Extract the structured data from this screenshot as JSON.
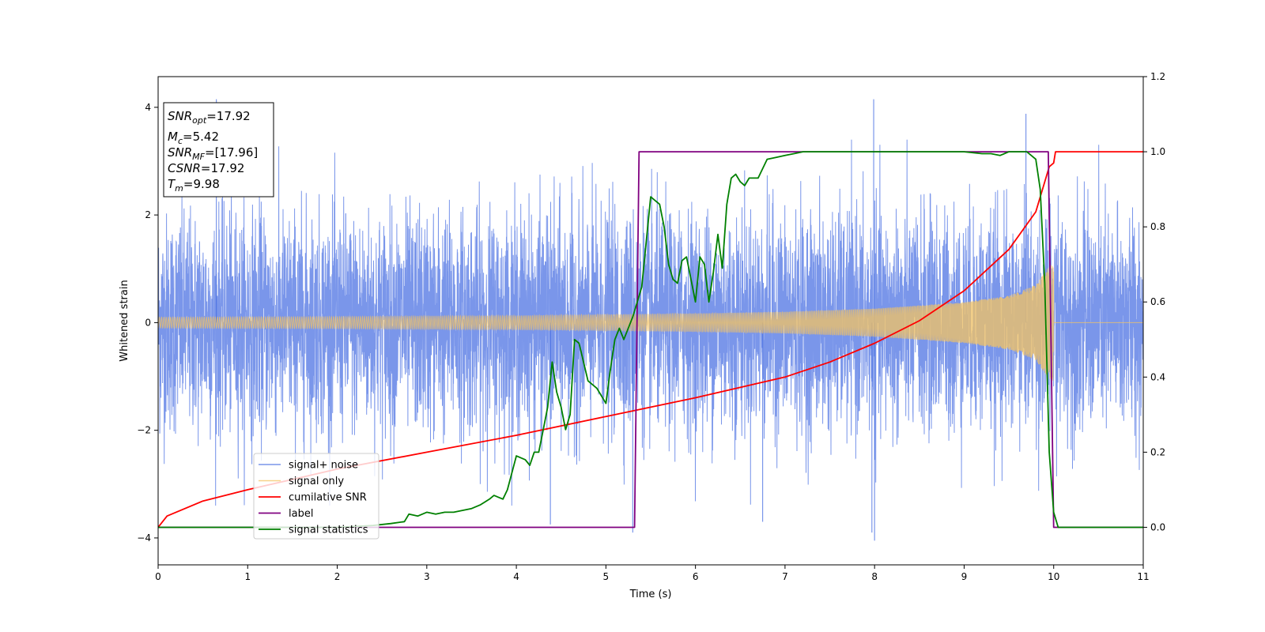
{
  "chart_data": {
    "type": "line",
    "xlabel": "Time (s)",
    "ylabel_left": "Whitened strain",
    "xlim": [
      0,
      11
    ],
    "ylim_left": [
      -4.5,
      4.57
    ],
    "ylim_right": [
      -0.1,
      1.2
    ],
    "x_ticks": [
      0,
      1,
      2,
      3,
      4,
      5,
      6,
      7,
      8,
      9,
      10,
      11
    ],
    "y_ticks_left": [
      -4,
      -2,
      0,
      2,
      4
    ],
    "y_ticks_right": [
      0.0,
      0.2,
      0.4,
      0.6,
      0.8,
      1.0,
      1.2
    ],
    "grid": false,
    "legend_position": "lower-left",
    "annotation": {
      "snr_opt": {
        "symbol": "SNR",
        "sub": "opt",
        "value": "=17.92"
      },
      "mc": {
        "symbol": "M",
        "sub": "c",
        "value": "=5.42"
      },
      "snr_mf": {
        "symbol": "SNR",
        "sub": "MF",
        "value": "=[17.96]"
      },
      "csnr": {
        "symbol": "CSNR",
        "value": "=17.92"
      },
      "tm": {
        "symbol": "T",
        "sub": "m",
        "value": "=9.98"
      }
    },
    "series": [
      {
        "name": "signal+ noise",
        "axis": "left",
        "color": "#4169e1",
        "kind": "noise",
        "noise_sigma": 1.0,
        "noise_extremes": [
          [
            0.65,
            4.15
          ],
          [
            7.99,
            4.15
          ],
          [
            9.69,
            3.88
          ],
          [
            7.97,
            -3.9
          ],
          [
            8.0,
            -4.05
          ],
          [
            5.3,
            -3.9
          ],
          [
            6.75,
            -3.7
          ],
          [
            4.38,
            -3.75
          ]
        ],
        "x_range": [
          0,
          11
        ]
      },
      {
        "name": "signal only",
        "axis": "left",
        "color": "#f4c362",
        "kind": "chirp",
        "envelope": {
          "t": [
            0,
            2,
            4,
            5,
            6,
            7,
            8,
            9,
            9.5,
            9.8,
            9.95,
            10.0,
            10.01,
            11
          ],
          "a": [
            0.1,
            0.11,
            0.13,
            0.15,
            0.17,
            0.2,
            0.26,
            0.38,
            0.5,
            0.7,
            1.05,
            1.1,
            0.0,
            0.0
          ]
        }
      },
      {
        "name": "cumilative SNR",
        "axis": "right",
        "color": "#ff0000",
        "x": [
          0,
          0.1,
          0.5,
          1,
          2,
          3,
          4,
          5,
          6,
          7,
          7.5,
          8,
          8.5,
          9,
          9.5,
          9.8,
          9.95,
          10.0,
          10.02,
          11
        ],
        "y": [
          0.0,
          0.03,
          0.07,
          0.1,
          0.155,
          0.2,
          0.245,
          0.295,
          0.345,
          0.4,
          0.44,
          0.49,
          0.55,
          0.63,
          0.74,
          0.84,
          0.96,
          0.97,
          1.0,
          1.0
        ]
      },
      {
        "name": "label",
        "axis": "right",
        "color": "#800080",
        "x": [
          0,
          5.32,
          5.37,
          9.94,
          10.0,
          11
        ],
        "y": [
          0,
          0,
          1,
          1,
          0,
          0
        ]
      },
      {
        "name": "signal statistics",
        "axis": "right",
        "color": "#008000",
        "x": [
          0,
          0.4,
          0.8,
          1.2,
          1.6,
          2.0,
          2.4,
          2.6,
          2.75,
          2.8,
          2.9,
          3.0,
          3.1,
          3.2,
          3.3,
          3.5,
          3.6,
          3.7,
          3.75,
          3.8,
          3.85,
          3.9,
          4.0,
          4.1,
          4.15,
          4.2,
          4.25,
          4.3,
          4.35,
          4.4,
          4.45,
          4.5,
          4.55,
          4.6,
          4.65,
          4.7,
          4.8,
          4.9,
          5.0,
          5.05,
          5.1,
          5.15,
          5.2,
          5.3,
          5.4,
          5.5,
          5.55,
          5.6,
          5.65,
          5.7,
          5.75,
          5.8,
          5.85,
          5.9,
          5.95,
          6.0,
          6.05,
          6.1,
          6.15,
          6.2,
          6.25,
          6.3,
          6.35,
          6.4,
          6.45,
          6.5,
          6.55,
          6.6,
          6.7,
          6.8,
          6.9,
          7.0,
          7.1,
          7.2,
          7.3,
          7.5,
          8.0,
          8.5,
          9.0,
          9.2,
          9.3,
          9.4,
          9.5,
          9.7,
          9.8,
          9.85,
          9.9,
          9.95,
          10.0,
          10.05,
          10.1,
          11
        ],
        "y": [
          0.0,
          0.0,
          0.0,
          0.0,
          0.0,
          0.0,
          0.005,
          0.01,
          0.015,
          0.035,
          0.03,
          0.04,
          0.035,
          0.04,
          0.04,
          0.05,
          0.06,
          0.075,
          0.085,
          0.08,
          0.075,
          0.1,
          0.19,
          0.18,
          0.165,
          0.2,
          0.2,
          0.26,
          0.32,
          0.44,
          0.36,
          0.32,
          0.26,
          0.3,
          0.5,
          0.49,
          0.39,
          0.37,
          0.33,
          0.42,
          0.5,
          0.53,
          0.5,
          0.56,
          0.64,
          0.88,
          0.87,
          0.86,
          0.8,
          0.7,
          0.66,
          0.65,
          0.71,
          0.72,
          0.66,
          0.6,
          0.72,
          0.7,
          0.6,
          0.68,
          0.78,
          0.69,
          0.86,
          0.93,
          0.94,
          0.92,
          0.91,
          0.93,
          0.93,
          0.98,
          0.985,
          0.99,
          0.995,
          1.0,
          1.0,
          1.0,
          1.0,
          1.0,
          1.0,
          0.995,
          0.995,
          0.99,
          1.0,
          1.0,
          0.98,
          0.9,
          0.65,
          0.2,
          0.04,
          0.0,
          0.0,
          0.0
        ]
      }
    ]
  }
}
